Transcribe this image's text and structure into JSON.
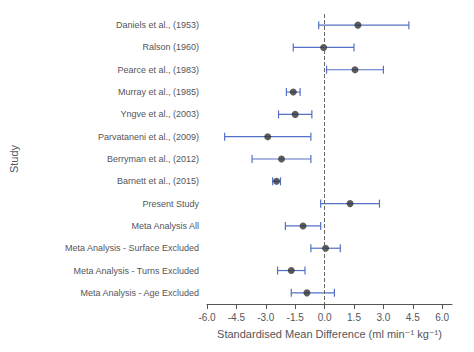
{
  "chart_data": {
    "type": "forest",
    "categories": [
      "Daniels et al., (1953)",
      "Ralson (1960)",
      "Pearce et al., (1983)",
      "Murray et al., (1985)",
      "Yngve et al., (2003)",
      "Parvataneni et al., (2009)",
      "Berryman et al., (2012)",
      "Barnett et al., (2015)",
      "Present Study",
      "Meta Analysis All",
      "Meta Analysis - Surface Excluded",
      "Meta Analysis - Turns Excluded",
      "Meta Analysis - Age Excluded"
    ],
    "values": [
      1.7,
      -0.05,
      1.55,
      -1.6,
      -1.5,
      -2.9,
      -2.2,
      -2.45,
      1.3,
      -1.1,
      0.05,
      -1.7,
      -0.9
    ],
    "ci_lower": [
      -0.3,
      -1.6,
      0.1,
      -1.95,
      -2.35,
      -5.1,
      -3.7,
      -2.65,
      -0.2,
      -2.0,
      -0.7,
      -2.4,
      -1.7
    ],
    "ci_upper": [
      4.3,
      1.5,
      3.0,
      -1.25,
      -0.65,
      -0.7,
      -0.7,
      -2.25,
      2.8,
      -0.2,
      0.8,
      -1.0,
      0.5
    ],
    "reference_line": 0.0,
    "xlabel": "Standardised Mean Difference (ml min⁻¹ kg⁻¹)",
    "ylabel": "Study",
    "xlim": [
      -6.0,
      6.5
    ],
    "xticks": [
      {
        "value": -6.0,
        "label": "-6.0"
      },
      {
        "value": -4.5,
        "label": "-4.5"
      },
      {
        "value": -3.0,
        "label": "-3.0"
      },
      {
        "value": -1.5,
        "label": "-1.5"
      },
      {
        "value": 0.0,
        "label": "0.0"
      },
      {
        "value": 1.5,
        "label": "1.5"
      },
      {
        "value": 3.0,
        "label": "3.0"
      },
      {
        "value": 4.5,
        "label": "4.5"
      },
      {
        "value": 6.0,
        "label": "6.0"
      }
    ],
    "grid": false
  }
}
